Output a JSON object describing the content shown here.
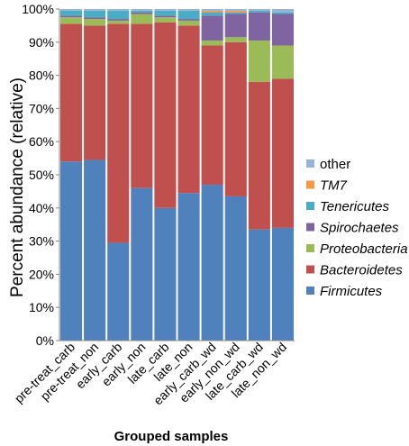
{
  "chart_data": {
    "type": "stacked-bar",
    "stack_mode": "percent",
    "xlabel": "Grouped samples",
    "ylabel": "Percent abundance (relative)",
    "ylim": [
      0,
      100
    ],
    "y_ticks": [
      "0%",
      "10%",
      "20%",
      "30%",
      "40%",
      "50%",
      "60%",
      "70%",
      "80%",
      "90%",
      "100%"
    ],
    "grid": false,
    "legend_position": "right",
    "categories": [
      "pre-treat_carb",
      "pre-treat_non",
      "early_carb",
      "early_non",
      "late_carb",
      "late_non",
      "early_carb_wd",
      "early_non_wd",
      "late_carb_wd",
      "late_non_wd"
    ],
    "series": [
      {
        "name": "Firmicutes",
        "color": "#4F81BD",
        "italic": true,
        "values": [
          54.0,
          54.5,
          29.5,
          46.0,
          40.0,
          44.5,
          47.0,
          43.5,
          33.5,
          34.0
        ]
      },
      {
        "name": "Bacteroidetes",
        "color": "#C0504D",
        "italic": true,
        "values": [
          41.5,
          40.5,
          66.0,
          49.5,
          56.0,
          50.5,
          42.0,
          46.5,
          44.5,
          45.0
        ]
      },
      {
        "name": "Proteobacteria",
        "color": "#9BBB59",
        "italic": true,
        "values": [
          2.0,
          2.0,
          1.0,
          3.0,
          1.5,
          1.5,
          1.5,
          1.5,
          12.5,
          10.0
        ]
      },
      {
        "name": "Spirochaetes",
        "color": "#8064A2",
        "italic": true,
        "values": [
          0.5,
          0.5,
          0.5,
          0.5,
          0.5,
          0.5,
          7.5,
          7.0,
          8.5,
          9.5
        ]
      },
      {
        "name": "Tenericutes",
        "color": "#4BACC6",
        "italic": true,
        "values": [
          1.5,
          2.0,
          2.5,
          0.5,
          1.5,
          2.5,
          1.0,
          0.5,
          0.5,
          0.5
        ]
      },
      {
        "name": "TM7",
        "color": "#F79646",
        "italic": true,
        "values": [
          0.0,
          0.0,
          0.0,
          0.0,
          0.0,
          0.0,
          0.5,
          0.5,
          0.0,
          0.0
        ]
      },
      {
        "name": "other",
        "color": "#95B3D7",
        "italic": false,
        "values": [
          0.5,
          0.5,
          0.5,
          0.5,
          0.5,
          0.5,
          0.5,
          0.5,
          0.5,
          1.0
        ]
      }
    ]
  }
}
